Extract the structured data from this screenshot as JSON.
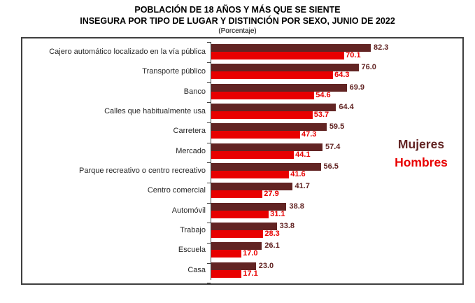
{
  "title_line1": "POBLACIÓN DE 18 AÑOS Y MÁS QUE SE SIENTE",
  "title_line2": "INSEGURA POR TIPO DE LUGAR Y DISTINCIÓN POR SEXO, JUNIO DE 2022",
  "subtitle": "(Porcentaje)",
  "legend": {
    "mujeres": "Mujeres",
    "hombres": "Hombres"
  },
  "colors": {
    "mujeres": "#622423",
    "hombres": "#E80000",
    "border": "#3f3f3f",
    "category_text": "#262626"
  },
  "chart_data": {
    "type": "bar",
    "orientation": "horizontal",
    "title": "POBLACIÓN DE 18 AÑOS Y MÁS QUE SE SIENTE INSEGURA POR TIPO DE LUGAR Y DISTINCIÓN POR SEXO, JUNIO DE 2022",
    "subtitle": "(Porcentaje)",
    "categories": [
      "Cajero automático localizado en la vía pública",
      "Transporte público",
      "Banco",
      "Calles que habitualmente usa",
      "Carretera",
      "Mercado",
      "Parque recreativo o centro recreativo",
      "Centro comercial",
      "Automóvil",
      "Trabajo",
      "Escuela",
      "Casa"
    ],
    "series": [
      {
        "name": "Mujeres",
        "color": "#622423",
        "values": [
          82.3,
          76.0,
          69.9,
          64.4,
          59.5,
          57.4,
          56.5,
          41.7,
          38.8,
          33.8,
          26.1,
          23.0
        ]
      },
      {
        "name": "Hombres",
        "color": "#E80000",
        "values": [
          70.1,
          64.3,
          54.6,
          53.7,
          47.3,
          44.1,
          41.6,
          27.9,
          31.1,
          28.3,
          17.0,
          17.1
        ]
      }
    ],
    "xlim": [
      0,
      100
    ],
    "value_labels": true,
    "value_label_format": "one_decimal",
    "grid": false,
    "legend_position": "right"
  }
}
